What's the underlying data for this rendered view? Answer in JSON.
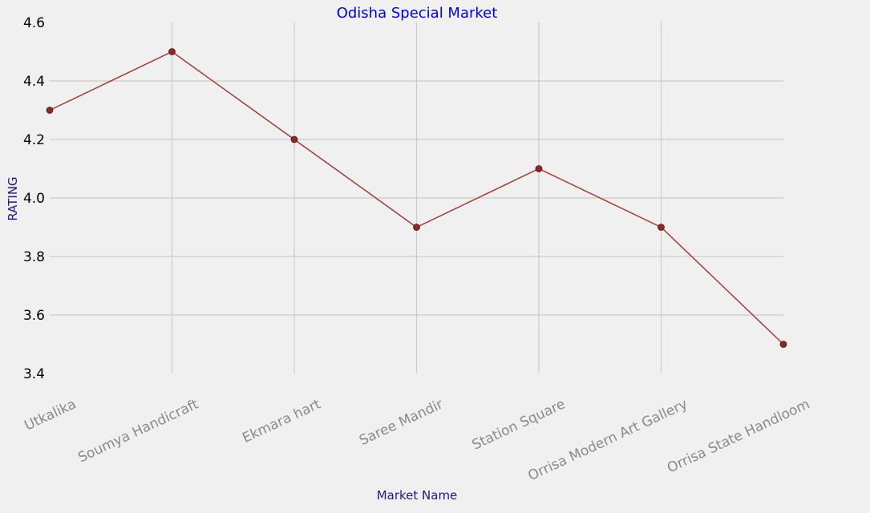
{
  "chart_data": {
    "type": "line",
    "title": "Odisha Special Market",
    "xlabel": "Market Name",
    "ylabel": "RATING",
    "categories": [
      "Utkalika",
      "Soumya Handicraft",
      "Ekmara hart",
      "Saree Mandir",
      "Station Square",
      "Orrisa Modern Art Gallery",
      "Orrisa State Handloom"
    ],
    "series": [
      {
        "values": [
          4.3,
          4.5,
          4.2,
          3.9,
          4.1,
          3.9,
          3.5
        ]
      }
    ],
    "ylim": [
      3.4,
      4.6
    ],
    "yticks": [
      "3.4",
      "3.6",
      "3.8",
      "4.0",
      "4.2",
      "4.4",
      "4.6"
    ],
    "grid": true,
    "colors": {
      "background": "#f0f0f0",
      "grid": "#cbcbcb",
      "line": "#a83a32",
      "marker": "#8b2a24",
      "title": "#0000ee",
      "axis_label": "#1a1a8c",
      "xtick": "#8a8a8a",
      "ytick": "#000000"
    }
  }
}
